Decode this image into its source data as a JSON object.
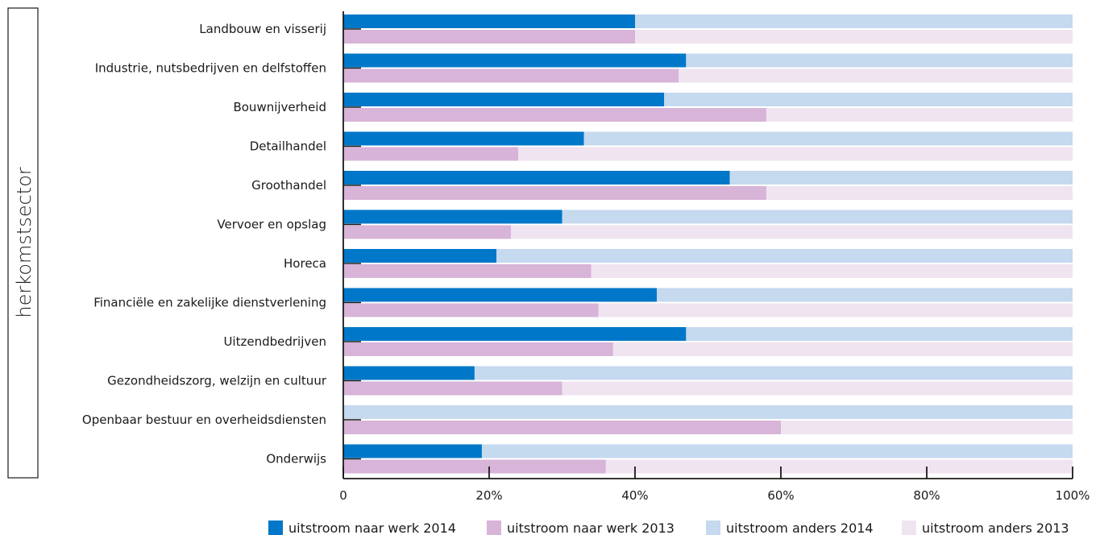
{
  "chart_data": {
    "type": "bar",
    "orientation": "horizontal",
    "ylabel": "herkomstsector",
    "xlim": [
      0,
      100
    ],
    "x_ticks": [
      "0",
      "20%",
      "40%",
      "60%",
      "80%",
      "100%"
    ],
    "categories": [
      "Landbouw en visserij",
      "Industrie, nutsbedrijven en delfstoffen",
      "Bouwnijverheid",
      "Detailhandel",
      "Groothandel",
      "Vervoer en opslag",
      "Horeca",
      "Financiële en zakelijke dienstverlening",
      "Uitzendbedrijven",
      "Gezondheidszorg, welzijn en cultuur",
      "Openbaar bestuur en overheidsdiensten",
      "Onderwijs"
    ],
    "series": [
      {
        "name": "uitstroom naar werk 2014",
        "color": "#0077c8",
        "values": [
          40,
          47,
          44,
          33,
          53,
          30,
          21,
          43,
          47,
          18,
          0,
          19
        ]
      },
      {
        "name": "uitstroom naar werk 2013",
        "color": "#d7b4d8",
        "values": [
          40,
          46,
          58,
          24,
          58,
          23,
          34,
          35,
          37,
          30,
          60,
          36
        ]
      },
      {
        "name": "uitstroom anders 2014",
        "color": "#c5d9ef",
        "values": [
          60,
          53,
          56,
          67,
          47,
          70,
          79,
          57,
          53,
          82,
          100,
          81
        ]
      },
      {
        "name": "uitstroom anders 2013",
        "color": "#efe4f0",
        "values": [
          60,
          54,
          42,
          76,
          42,
          77,
          66,
          65,
          63,
          70,
          40,
          64
        ]
      }
    ],
    "legend": "bottom",
    "grid": false
  }
}
